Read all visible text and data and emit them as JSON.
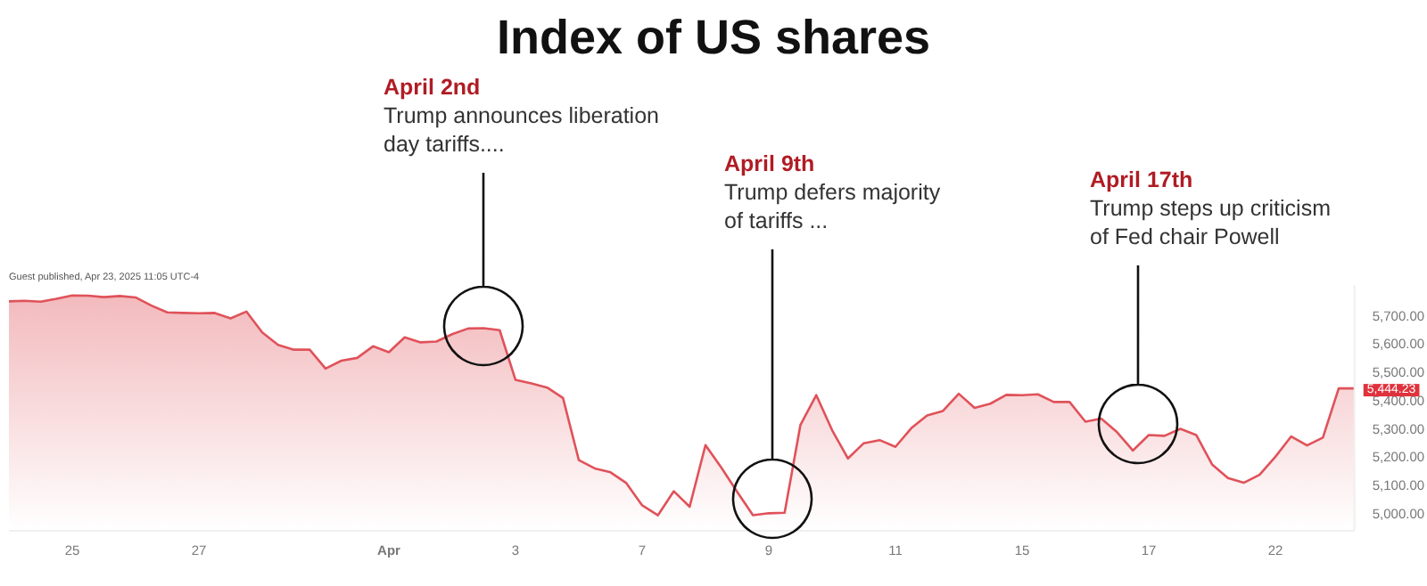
{
  "chart_data": {
    "type": "area",
    "title": "Index of US shares",
    "color": "#e0525a",
    "categories": [
      null,
      null,
      null,
      null,
      "25",
      null,
      null,
      null,
      null,
      null,
      null,
      null,
      "27",
      null,
      null,
      null,
      null,
      null,
      null,
      null,
      null,
      null,
      null,
      null,
      "Apr",
      null,
      null,
      null,
      null,
      null,
      null,
      null,
      "3",
      null,
      null,
      null,
      null,
      null,
      null,
      null,
      "7",
      null,
      null,
      null,
      null,
      null,
      null,
      null,
      "9",
      null,
      null,
      null,
      null,
      null,
      null,
      null,
      "11",
      null,
      null,
      null,
      null,
      null,
      null,
      null,
      "15",
      null,
      null,
      null,
      null,
      null,
      null,
      null,
      "17",
      null,
      null,
      null,
      null,
      null,
      null,
      null,
      "22",
      null,
      null,
      null,
      null,
      null
    ],
    "values": [
      5752,
      5754,
      5751,
      5761,
      5773,
      5772,
      5767,
      5771,
      5766,
      5737,
      5713,
      5711,
      5710,
      5711,
      5692,
      5716,
      5642,
      5598,
      5581,
      5581,
      5514,
      5542,
      5552,
      5593,
      5572,
      5625,
      5607,
      5610,
      5636,
      5656,
      5657,
      5650,
      5474,
      5462,
      5447,
      5410,
      5190,
      5161,
      5147,
      5109,
      5030,
      4995,
      5080,
      5025,
      5243,
      5164,
      5078,
      4995,
      5002,
      5004,
      5315,
      5420,
      5296,
      5196,
      5250,
      5261,
      5237,
      5303,
      5348,
      5364,
      5425,
      5375,
      5390,
      5421,
      5420,
      5423,
      5396,
      5396,
      5326,
      5337,
      5289,
      5224,
      5279,
      5276,
      5301,
      5279,
      5175,
      5127,
      5110,
      5138,
      5202,
      5274,
      5242,
      5270,
      5444,
      5444
    ],
    "ylim": [
      4940,
      5810
    ],
    "yticks": [
      {
        "value": 5000,
        "label": "5,000.00"
      },
      {
        "value": 5100,
        "label": "5,100.00"
      },
      {
        "value": 5200,
        "label": "5,200.00"
      },
      {
        "value": 5300,
        "label": "5,300.00"
      },
      {
        "value": 5400,
        "label": "5,400.00"
      },
      {
        "value": 5500,
        "label": "5,500.00"
      },
      {
        "value": 5600,
        "label": "5,600.00"
      },
      {
        "value": 5700,
        "label": "5,700.00"
      }
    ],
    "grid": false,
    "marker": "none",
    "annotations": [
      "April 2nd\nTrump announces liberation\nday tariffs....",
      "April 9th\nTrump defers majority\nof tariffs ...",
      "April 17th\nTrump steps up criticism\nof Fed chair Powell",
      "5,444.23",
      "Guest published, Apr 23, 2025 11:05 UTC-4"
    ]
  }
}
